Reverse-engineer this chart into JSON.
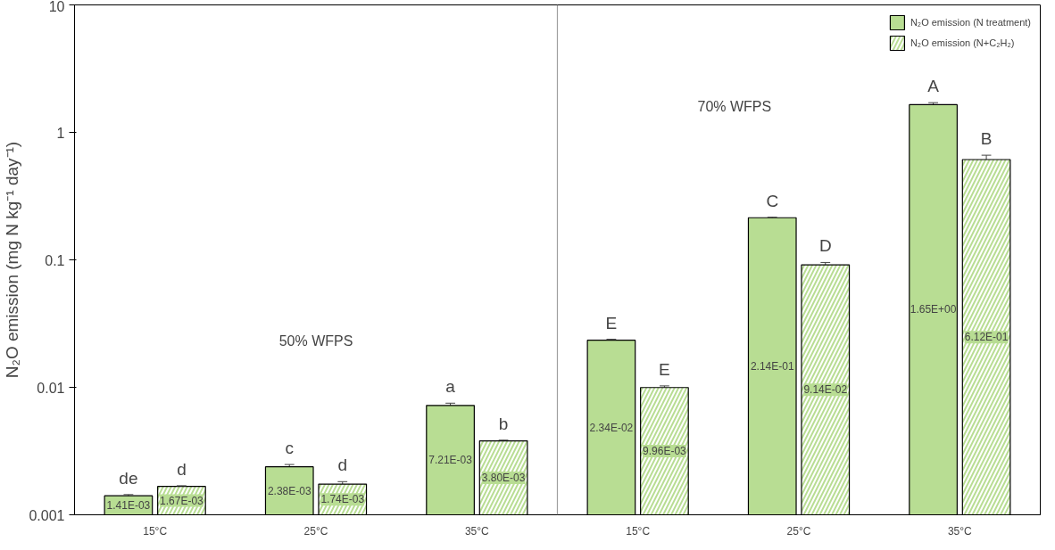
{
  "chart_data": {
    "type": "bar",
    "ylabel": "N₂O emission (mg N kg⁻¹ day⁻¹)",
    "categories": [
      "15°C",
      "25°C",
      "35°C",
      "15°C",
      "25°C",
      "35°C"
    ],
    "series": [
      {
        "name": "N₂O emission (N treatment)",
        "color": "#b8dd93",
        "values": [
          0.00141,
          0.00238,
          0.00721,
          0.0234,
          0.214,
          1.65
        ],
        "errors": [
          3e-05,
          0.0001,
          0.0003,
          0.0004,
          0.002,
          0.06
        ],
        "value_labels": [
          "1.41E-03",
          "2.38E-03",
          "7.21E-03",
          "2.34E-02",
          "2.14E-01",
          "1.65E+00"
        ]
      },
      {
        "name": "N₂O emission (N+C₂H₂)",
        "color": "#b8dd93",
        "values": [
          0.00167,
          0.00174,
          0.0038,
          0.00996,
          0.0914,
          0.612
        ],
        "errors": [
          2e-05,
          8e-05,
          5e-05,
          0.0003,
          0.004,
          0.05
        ],
        "value_labels": [
          "1.67E-03",
          "1.74E-03",
          "3.80E-03",
          "9.96E-03",
          "9.14E-02",
          "6.12E-01"
        ]
      }
    ],
    "log": "y",
    "ylim": [
      0.001,
      10
    ],
    "yticks": [
      0.001,
      0.01,
      0.1,
      1,
      10
    ],
    "grid": false,
    "legend": "top right",
    "annotations": [
      "50% WFPS",
      "70% WFPS",
      "de",
      "d",
      "c",
      "d",
      "a",
      "b",
      "E",
      "E",
      "C",
      "D",
      "A",
      "B"
    ]
  }
}
